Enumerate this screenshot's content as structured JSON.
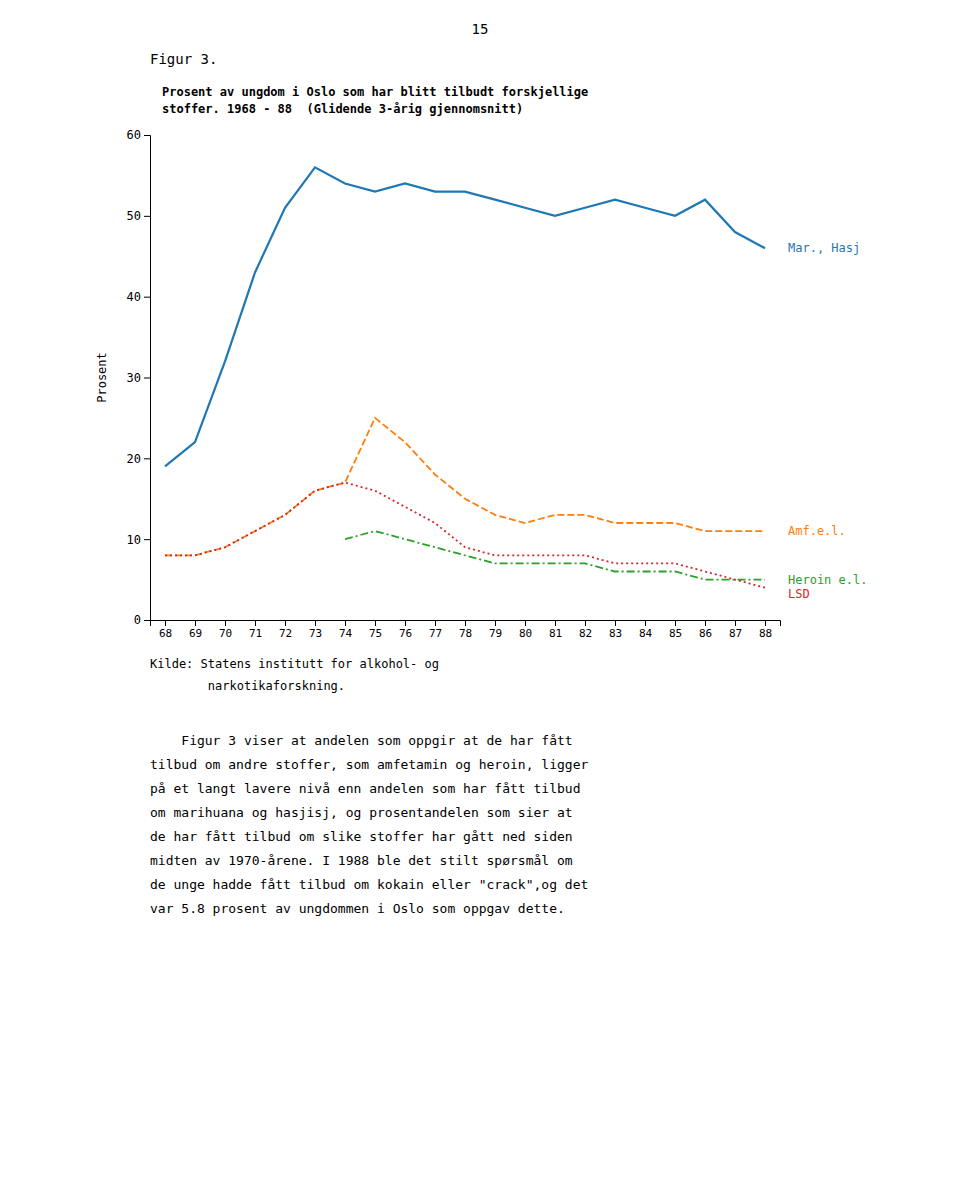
{
  "page_number": "15",
  "figure_label": "Figur 3.",
  "chart_data": {
    "type": "line",
    "title": "Prosent av ungdom i Oslo som har blitt tilbudt forskjellige\nstoffer. 1968 - 88  (Glidende 3-årig gjennomsnitt)",
    "y_label": "Prosent",
    "x": [
      68,
      69,
      70,
      71,
      72,
      73,
      74,
      75,
      76,
      77,
      78,
      79,
      80,
      81,
      82,
      83,
      84,
      85,
      86,
      87,
      88
    ],
    "series": [
      {
        "name": "Mar., Hasj",
        "line_style": "solid",
        "values": [
          19,
          22,
          32,
          43,
          51,
          56,
          54,
          53,
          54,
          53,
          53,
          52,
          51,
          50,
          51,
          52,
          51,
          50,
          52,
          48,
          46
        ]
      },
      {
        "name": "Amf.e.l.",
        "line_style": "dashed",
        "values": [
          8,
          8,
          9,
          11,
          13,
          16,
          17,
          25,
          22,
          18,
          15,
          13,
          12,
          13,
          13,
          12,
          12,
          12,
          11,
          11,
          11
        ]
      },
      {
        "name": "Heroin e.l.",
        "line_style": "dashdot",
        "values": [
          null,
          null,
          null,
          null,
          null,
          null,
          10,
          11,
          10,
          9,
          8,
          7,
          7,
          7,
          7,
          6,
          6,
          6,
          5,
          5,
          5
        ]
      },
      {
        "name": "LSD",
        "line_style": "dotted",
        "values": [
          8,
          8,
          9,
          11,
          13,
          16,
          17,
          16,
          14,
          12,
          9,
          8,
          8,
          8,
          8,
          7,
          7,
          7,
          6,
          5,
          4
        ]
      }
    ],
    "xlim": [
      67.5,
      88.5
    ],
    "xticks": [
      68,
      69,
      70,
      71,
      72,
      73,
      74,
      75,
      76,
      77,
      78,
      79,
      80,
      81,
      82,
      83,
      84,
      85,
      86,
      87,
      88
    ],
    "ylim": [
      0,
      60
    ],
    "yticks": [
      0,
      10,
      20,
      30,
      40,
      50,
      60
    ],
    "grid": false,
    "source": [
      "Kilde: Statens institutt for alkohol- og",
      "        narkotikaforskning."
    ]
  },
  "body_text": [
    "    Figur 3 viser at andelen som oppgir at de har fått",
    "tilbud om andre stoffer, som amfetamin og heroin, ligger",
    "på et langt lavere nivå enn andelen som har fått tilbud",
    "om marihuana og hasjisj, og prosentandelen som sier at",
    "de har fått tilbud om slike stoffer har gått ned siden",
    "midten av 1970-årene. I 1988 ble det stilt spørsmål om",
    "de unge hadde fått tilbud om kokain eller \"crack\",og det",
    "var 5.8 prosent av ungdommen i Oslo som oppgav dette."
  ]
}
